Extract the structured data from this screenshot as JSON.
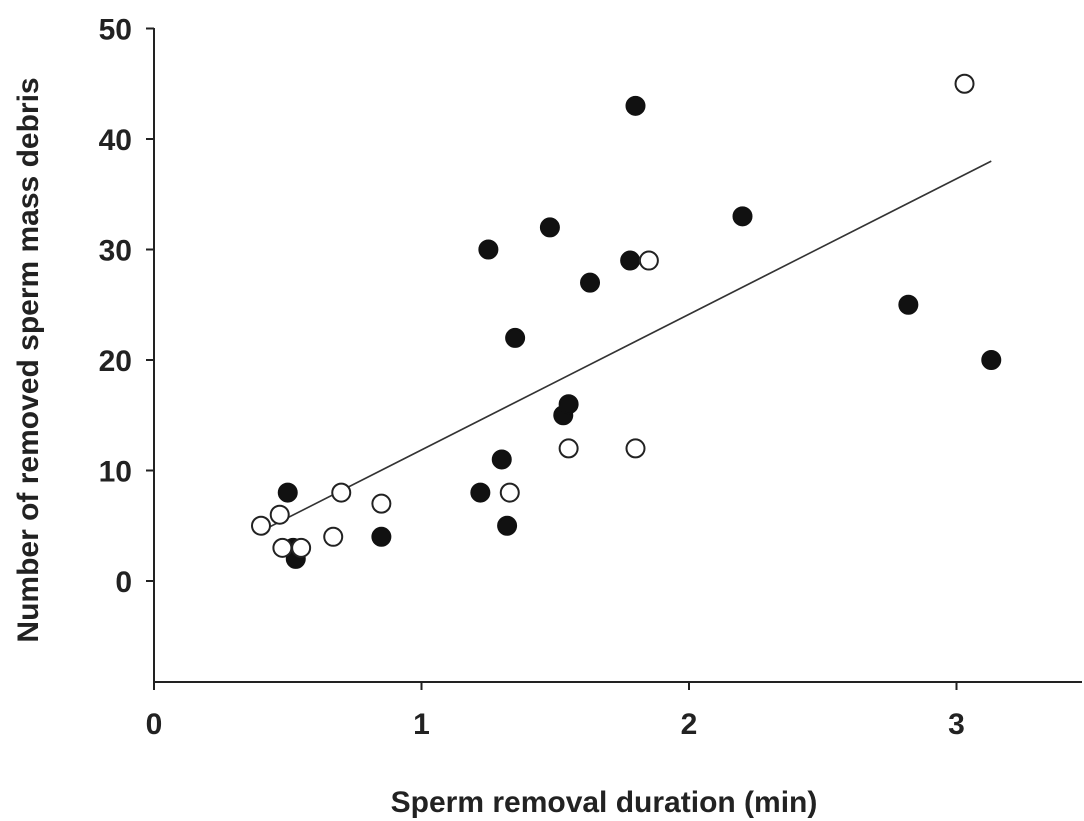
{
  "chart_data": {
    "type": "scatter",
    "title": "",
    "xlabel": "Sperm removal duration (min)",
    "ylabel": "Number of removed sperm mass debris",
    "xlim": [
      0,
      3.5
    ],
    "ylim": [
      -9,
      50
    ],
    "x_ticks": [
      0,
      1,
      2,
      3
    ],
    "y_ticks": [
      0,
      10,
      20,
      30,
      40,
      50
    ],
    "x_tick_labels": [
      "0",
      "1",
      "2",
      "3"
    ],
    "y_tick_labels": [
      "0",
      "10",
      "20",
      "30",
      "40",
      "50"
    ],
    "grid": false,
    "legend": "none",
    "series": [
      {
        "marker": "filled-circle",
        "color": "#111111",
        "points": [
          {
            "x": 0.5,
            "y": 8
          },
          {
            "x": 0.52,
            "y": 3
          },
          {
            "x": 0.53,
            "y": 2
          },
          {
            "x": 0.85,
            "y": 4
          },
          {
            "x": 1.22,
            "y": 8
          },
          {
            "x": 1.25,
            "y": 30
          },
          {
            "x": 1.3,
            "y": 11
          },
          {
            "x": 1.32,
            "y": 5
          },
          {
            "x": 1.35,
            "y": 22
          },
          {
            "x": 1.48,
            "y": 32
          },
          {
            "x": 1.53,
            "y": 15
          },
          {
            "x": 1.55,
            "y": 16
          },
          {
            "x": 1.63,
            "y": 27
          },
          {
            "x": 1.78,
            "y": 29
          },
          {
            "x": 1.8,
            "y": 43
          },
          {
            "x": 2.2,
            "y": 33
          },
          {
            "x": 2.82,
            "y": 25
          },
          {
            "x": 3.13,
            "y": 20
          }
        ]
      },
      {
        "marker": "open-circle",
        "color": "#ffffff",
        "points": [
          {
            "x": 0.4,
            "y": 5
          },
          {
            "x": 0.47,
            "y": 6
          },
          {
            "x": 0.48,
            "y": 3
          },
          {
            "x": 0.55,
            "y": 3
          },
          {
            "x": 0.67,
            "y": 4
          },
          {
            "x": 0.7,
            "y": 8
          },
          {
            "x": 0.85,
            "y": 7
          },
          {
            "x": 1.33,
            "y": 8
          },
          {
            "x": 1.55,
            "y": 12
          },
          {
            "x": 1.8,
            "y": 12
          },
          {
            "x": 1.85,
            "y": 29
          },
          {
            "x": 3.03,
            "y": 45
          }
        ]
      }
    ],
    "trendline": {
      "x": [
        0.4,
        3.13
      ],
      "y": [
        4.5,
        38
      ]
    }
  }
}
